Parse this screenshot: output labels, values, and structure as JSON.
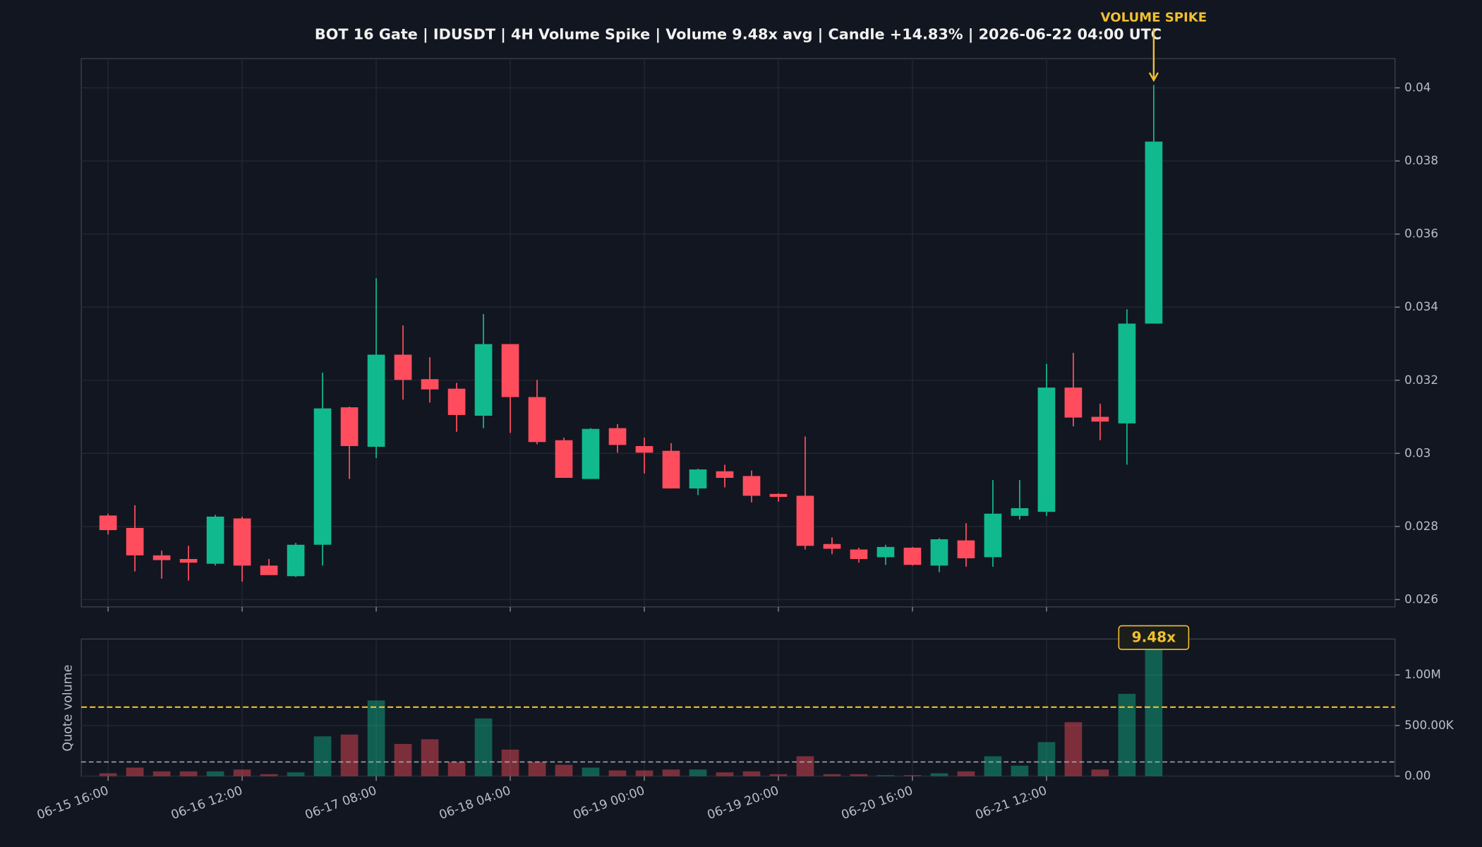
{
  "chart_data": [
    {
      "type": "candlestick",
      "title": "BOT 16 Gate | IDUSDT | 4H Volume Spike | Volume 9.48x avg | Candle +14.83% | 2026-06-22 04:00 UTC",
      "annotation": "VOLUME SPIKE",
      "categories": [
        "06-15 16:00",
        null,
        null,
        null,
        null,
        "06-16 12:00",
        null,
        null,
        null,
        null,
        "06-17 08:00",
        null,
        null,
        null,
        null,
        "06-18 04:00",
        null,
        null,
        null,
        null,
        "06-19 00:00",
        null,
        null,
        null,
        null,
        "06-19 20:00",
        null,
        null,
        null,
        null,
        "06-20 16:00",
        null,
        null,
        null,
        null,
        "06-21 12:00",
        null,
        null,
        null,
        null
      ],
      "open": [
        0.0283,
        0.02796,
        0.02721,
        0.02711,
        0.02698,
        0.02822,
        0.02693,
        0.02664,
        0.0275,
        0.03126,
        0.03018,
        0.0327,
        0.03203,
        0.03177,
        0.03103,
        0.03299,
        0.03154,
        0.03036,
        0.0293,
        0.03069,
        0.0302,
        0.03007,
        0.02904,
        0.02951,
        0.02938,
        0.02889,
        0.02884,
        0.02752,
        0.02737,
        0.02716,
        0.02742,
        0.02693,
        0.02762,
        0.02716,
        0.02829,
        0.0284,
        0.0318,
        0.031,
        0.03082,
        0.03355
      ],
      "high": [
        0.02835,
        0.02858,
        0.02734,
        0.02747,
        0.02832,
        0.02827,
        0.02711,
        0.02755,
        0.03221,
        0.03128,
        0.03479,
        0.0335,
        0.03263,
        0.03193,
        0.03381,
        0.03299,
        0.03201,
        0.03043,
        0.03069,
        0.0308,
        0.03043,
        0.03028,
        0.02958,
        0.02969,
        0.02953,
        0.02891,
        0.03046,
        0.0277,
        0.02742,
        0.0275,
        0.02744,
        0.02768,
        0.02809,
        0.02927,
        0.02927,
        0.03245,
        0.03275,
        0.03136,
        0.03394,
        0.04008
      ],
      "low": [
        0.02778,
        0.02677,
        0.02657,
        0.02652,
        0.02693,
        0.02649,
        0.02667,
        0.02662,
        0.02693,
        0.0293,
        0.02987,
        0.03147,
        0.03139,
        0.03059,
        0.03069,
        0.03056,
        0.03025,
        0.02933,
        0.0293,
        0.03002,
        0.02945,
        0.02904,
        0.02886,
        0.02907,
        0.02866,
        0.02868,
        0.02737,
        0.02724,
        0.02701,
        0.02695,
        0.02693,
        0.02675,
        0.0269,
        0.0269,
        0.02819,
        0.02829,
        0.03074,
        0.03036,
        0.02969,
        0.03355
      ],
      "close": [
        0.0279,
        0.02721,
        0.02708,
        0.02701,
        0.02827,
        0.02693,
        0.02667,
        0.0275,
        0.03123,
        0.0302,
        0.0327,
        0.03201,
        0.03175,
        0.03105,
        0.03299,
        0.03154,
        0.03031,
        0.02933,
        0.03067,
        0.03023,
        0.03002,
        0.02904,
        0.02956,
        0.02933,
        0.02884,
        0.02881,
        0.02747,
        0.02739,
        0.02711,
        0.02744,
        0.02695,
        0.02765,
        0.02713,
        0.02835,
        0.0285,
        0.0318,
        0.03098,
        0.03087,
        0.03355,
        0.03853
      ],
      "up_color": "#11b98f",
      "down_color": "#ff4d5e",
      "ylim": [
        0.0258,
        0.0408
      ],
      "yticks": [
        0.026,
        0.028,
        0.03,
        0.032,
        0.034,
        0.036,
        0.038,
        0.04
      ],
      "grid": true
    },
    {
      "type": "bar",
      "ylabel": "Quote volume",
      "annotation": "9.48x",
      "values": [
        28000,
        84000,
        47000,
        47000,
        47000,
        65000,
        19000,
        37000,
        393000,
        411000,
        748000,
        318000,
        364000,
        140000,
        570000,
        262000,
        140000,
        112000,
        84000,
        56000,
        56000,
        65000,
        65000,
        37000,
        47000,
        19000,
        196000,
        19000,
        19000,
        9000,
        9000,
        28000,
        47000,
        196000,
        103000,
        336000,
        533000,
        65000,
        813000,
        1330000
      ],
      "average_line": 140000,
      "threshold_line": 682000,
      "ylim": [
        0,
        1355000
      ],
      "yticks": [
        {
          "value": 0,
          "label": "0.00"
        },
        {
          "value": 500000,
          "label": "500.00K"
        },
        {
          "value": 1000000,
          "label": "1.00M"
        }
      ],
      "grid": true
    }
  ]
}
